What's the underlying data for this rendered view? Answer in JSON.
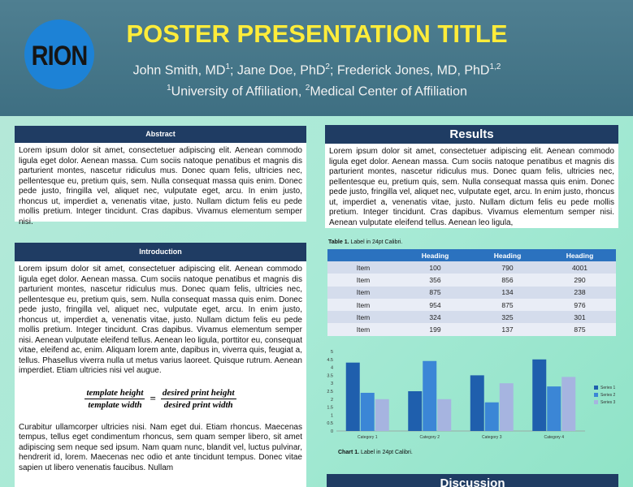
{
  "logo": {
    "text": "RION"
  },
  "title": "POSTER PRESENTATION TITLE",
  "authors": {
    "a1": "John Smith, MD",
    "a1_sup": "1",
    "a2": "; Jane Doe, PhD",
    "a2_sup": "2",
    "a3": "; Frederick Jones, MD, PhD",
    "a3_sup": "1,2",
    "aff1_sup": "1",
    "aff1": "University of Affiliation, ",
    "aff2_sup": "2",
    "aff2": "Medical Center of Affiliation"
  },
  "abstract": {
    "heading": "Abstract",
    "text": "Lorem ipsum dolor sit amet, consectetuer adipiscing elit. Aenean commodo ligula eget dolor. Aenean massa. Cum sociis natoque penatibus et magnis dis parturient montes, nascetur ridiculus mus. Donec quam felis, ultricies nec, pellentesque eu, pretium quis, sem. Nulla consequat massa quis enim. Donec pede justo, fringilla vel, aliquet nec, vulputate eget, arcu. In enim justo, rhoncus ut, imperdiet a, venenatis vitae, justo. Nullam dictum felis eu pede mollis pretium. Integer tincidunt. Cras dapibus. Vivamus elementum semper nisi."
  },
  "introduction": {
    "heading": "Introduction",
    "text": "Lorem ipsum dolor sit amet, consectetuer adipiscing elit. Aenean commodo ligula eget dolor. Aenean massa. Cum sociis natoque penatibus et magnis dis parturient montes, nascetur ridiculus mus. Donec quam felis, ultricies nec, pellentesque eu, pretium quis, sem. Nulla consequat massa quis enim. Donec pede justo, fringilla vel, aliquet nec, vulputate eget, arcu. In enim justo, rhoncus ut, imperdiet a, venenatis vitae, justo. Nullam dictum felis eu pede mollis pretium. Integer tincidunt. Cras dapibus. Vivamus elementum semper nisi. Aenean vulputate eleifend tellus. Aenean leo ligula, porttitor eu, consequat vitae, eleifend ac, enim. Aliquam lorem ante, dapibus in, viverra quis, feugiat a, tellus. Phasellus viverra nulla ut metus varius laoreet. Quisque rutrum. Aenean imperdiet. Etiam ultricies nisi vel augue.",
    "formula_num_left": "template height",
    "formula_den_left": "template width",
    "formula_eq": "=",
    "formula_num_right": "desired print height",
    "formula_den_right": "desired print width",
    "text2": "Curabitur ullamcorper ultricies nisi. Nam eget dui. Etiam rhoncus. Maecenas tempus, tellus eget condimentum rhoncus, sem quam semper libero, sit amet adipiscing sem neque sed ipsum. Nam quam nunc, blandit vel, luctus pulvinar, hendrerit id, lorem. Maecenas nec odio et ante tincidunt tempus. Donec vitae sapien ut libero venenatis faucibus. Nullam"
  },
  "results": {
    "heading": "Results",
    "text": "Lorem ipsum dolor sit amet, consectetuer adipiscing elit. Aenean commodo ligula eget dolor. Aenean massa. Cum sociis natoque penatibus et magnis dis parturient montes, nascetur ridiculus mus. Donec quam felis, ultricies nec, pellentesque eu, pretium quis, sem. Nulla consequat massa quis enim. Donec pede justo, fringilla vel, aliquet nec, vulputate eget, arcu. In enim justo, rhoncus ut, imperdiet a, venenatis vitae, justo. Nullam dictum felis eu pede mollis pretium. Integer tincidunt. Cras dapibus. Vivamus elementum semper nisi. Aenean vulputate eleifend tellus. Aenean leo ligula,",
    "table_caption_bold": "Table 1.",
    "table_caption": " Label in 24pt Calibri.",
    "table": {
      "headers": [
        "",
        "Heading",
        "Heading",
        "Heading"
      ],
      "rows": [
        [
          "Item",
          "100",
          "790",
          "4001"
        ],
        [
          "Item",
          "356",
          "856",
          "290"
        ],
        [
          "Item",
          "875",
          "134",
          "238"
        ],
        [
          "Item",
          "954",
          "875",
          "976"
        ],
        [
          "Item",
          "324",
          "325",
          "301"
        ],
        [
          "Item",
          "199",
          "137",
          "875"
        ]
      ]
    },
    "chart_caption_bold": "Chart 1.",
    "chart_caption": " Label in 24pt Calibri."
  },
  "discussion": {
    "heading": "Discussion"
  },
  "colors": {
    "header_bg": "#3e6f82",
    "title": "#ffec3a",
    "panel_head": "#1f3c63",
    "table_head": "#2b72bf",
    "series1": "#1f5fad",
    "series2": "#3b86d6",
    "series3": "#a6b4e0"
  },
  "chart_data": {
    "type": "bar",
    "categories": [
      "Category 1",
      "Category 2",
      "Category 3",
      "Category 4"
    ],
    "series": [
      {
        "name": "Series 1",
        "values": [
          4.3,
          2.5,
          3.5,
          4.5
        ]
      },
      {
        "name": "Series 2",
        "values": [
          2.4,
          4.4,
          1.8,
          2.8
        ]
      },
      {
        "name": "Series 3",
        "values": [
          2.0,
          2.0,
          3.0,
          3.4
        ]
      }
    ],
    "ylim": [
      0,
      5
    ],
    "yticks": [
      "0",
      "0.5",
      "1",
      "1.5",
      "2",
      "2.5",
      "3",
      "3.5",
      "4",
      "4.5",
      "5"
    ],
    "legend": "right",
    "grid": false
  }
}
